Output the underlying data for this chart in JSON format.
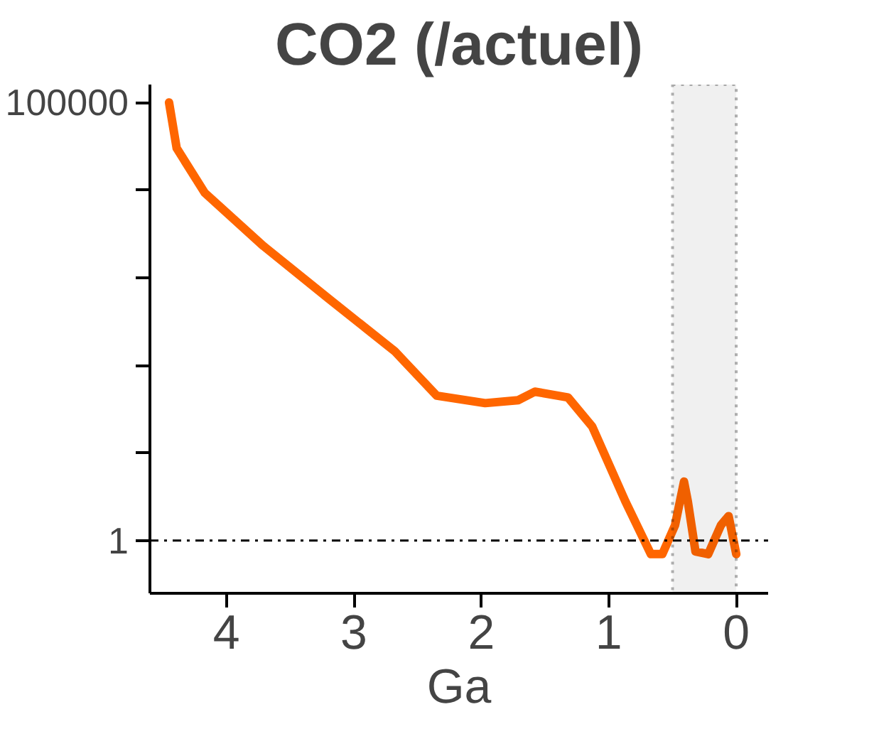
{
  "chart_data": {
    "type": "line",
    "title": "CO2 (/actuel)",
    "xlabel": "Ga",
    "x": [
      4.45,
      4.39,
      4.17,
      3.71,
      3.2,
      2.68,
      2.35,
      1.97,
      1.71,
      1.58,
      1.32,
      1.13,
      0.87,
      0.67,
      0.58,
      0.48,
      0.41,
      0.38,
      0.32,
      0.22,
      0.12,
      0.06,
      0.0
    ],
    "series": [
      {
        "color": "#ff6600",
        "values": [
          100000,
          30000,
          9300,
          2300,
          580,
          145,
          45,
          37,
          40,
          50,
          43,
          20,
          2.8,
          0.7,
          0.7,
          1.5,
          4.7,
          2.8,
          0.75,
          0.7,
          1.5,
          1.9,
          0.7
        ]
      }
    ],
    "log": "y",
    "xlim": [
      4.6,
      -0.25
    ],
    "ylim": [
      0.25,
      160000
    ],
    "xticks": [
      4,
      3,
      2,
      1,
      0
    ],
    "yticks": [
      1,
      {
        "value": 10,
        "label": null
      },
      {
        "value": 100,
        "label": null
      },
      {
        "value": 1000,
        "label": null
      },
      {
        "value": 10000,
        "label": null
      },
      100000
    ],
    "ref_lines": [
      {
        "axis": "y",
        "value": 1,
        "line_style": "dashdot",
        "color": "#000000"
      }
    ],
    "bands": [
      {
        "axis": "x",
        "from": 0.5,
        "to": 0,
        "color": "#000000"
      }
    ],
    "grid": false,
    "line_style": "solid",
    "marker": "none"
  }
}
